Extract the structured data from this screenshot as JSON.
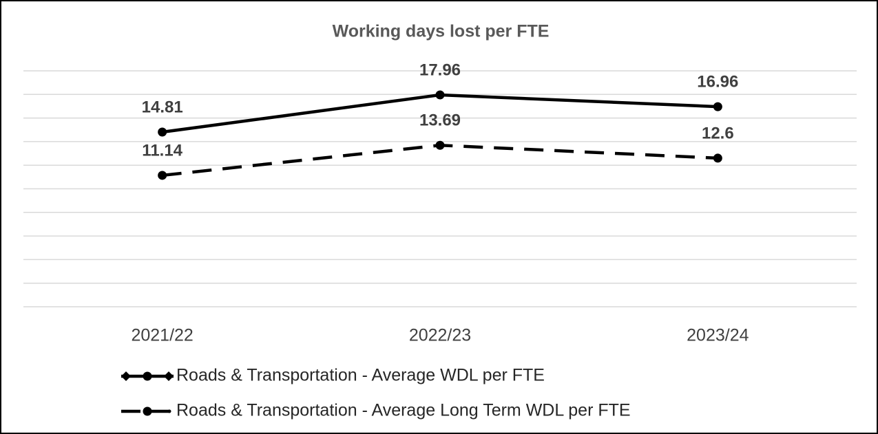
{
  "chart_data": {
    "type": "line",
    "title": "Working days lost per FTE",
    "categories": [
      "2021/22",
      "2022/23",
      "2023/24"
    ],
    "series": [
      {
        "name": "Roads & Transportation - Average WDL per FTE",
        "color": "#000000",
        "line_style": "solid",
        "values": [
          14.81,
          17.96,
          16.96
        ]
      },
      {
        "name": "Roads & Transportation - Average Long Term WDL per FTE",
        "color": "#000000",
        "line_style": "dashed",
        "values": [
          11.14,
          13.69,
          12.6
        ]
      }
    ],
    "ylim": [
      0,
      20
    ],
    "yticks": [
      0,
      2,
      4,
      6,
      8,
      10,
      12,
      14,
      16,
      18,
      20
    ],
    "grid": true,
    "legend": "bottom"
  }
}
